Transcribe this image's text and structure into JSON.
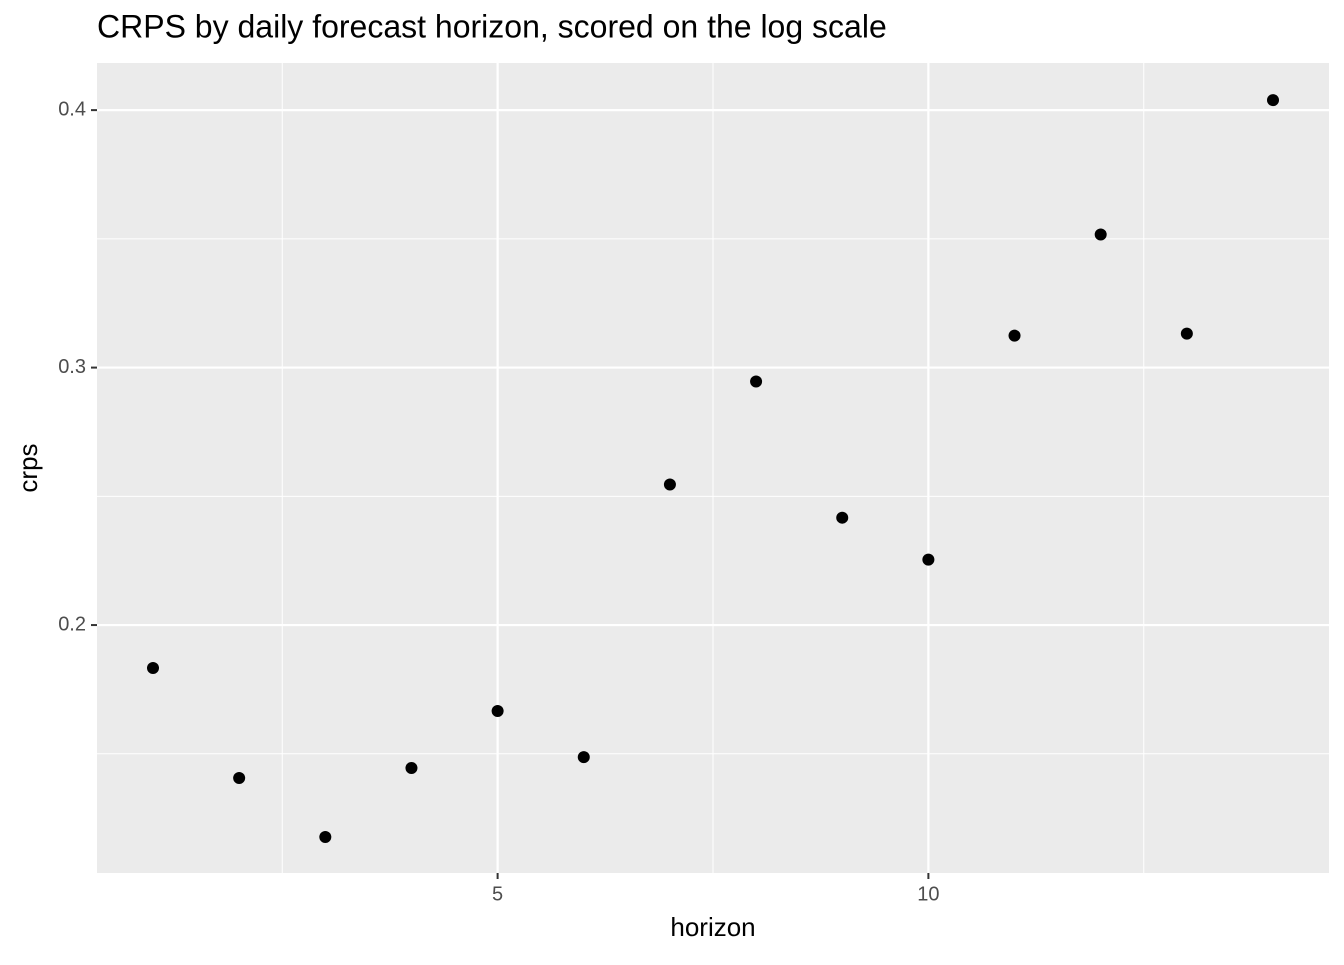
{
  "chart_data": {
    "type": "scatter",
    "title": "CRPS by daily forecast horizon, scored on the log scale",
    "x_label": "horizon",
    "y_label": "crps",
    "x": [
      1,
      2,
      3,
      4,
      5,
      6,
      7,
      8,
      9,
      10,
      11,
      12,
      13,
      14
    ],
    "series": [
      {
        "color": "#000000",
        "values": [
          0.1833,
          0.1406,
          0.1177,
          0.1445,
          0.1666,
          0.1487,
          0.2546,
          0.2946,
          0.2417,
          0.2254,
          0.3124,
          0.3517,
          0.3132,
          0.4039
        ]
      }
    ],
    "xlim": [
      0.35,
      14.65
    ],
    "ylim": [
      0.1037,
      0.4183
    ],
    "xticks": [
      5,
      10
    ],
    "yticks": [
      0.2,
      0.3,
      0.4
    ],
    "xminorticks": [
      2.5,
      7.5,
      12.5
    ],
    "yminorticks": [
      0.15,
      0.25,
      0.35
    ],
    "grid": true
  }
}
